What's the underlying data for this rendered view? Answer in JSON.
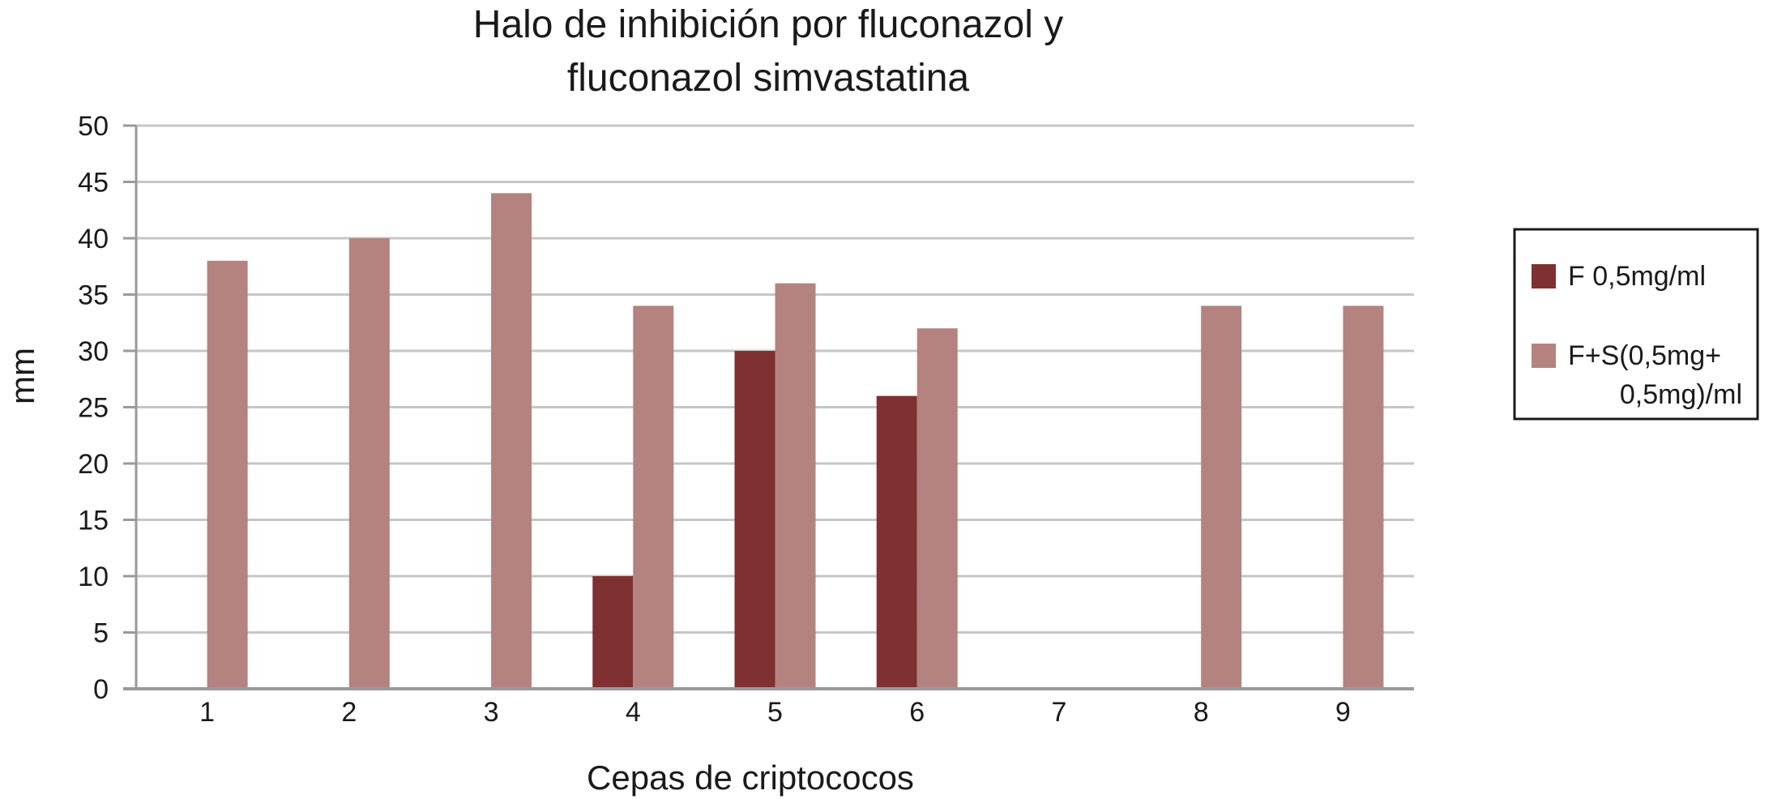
{
  "chart_data": {
    "type": "bar",
    "title_lines": [
      "Halo de inhibición por fluconazol y",
      "fluconazol simvastatina"
    ],
    "xlabel": "Cepas de criptococos",
    "ylabel": "mm",
    "categories": [
      "1",
      "2",
      "3",
      "4",
      "5",
      "6",
      "7",
      "8",
      "9"
    ],
    "ylim": [
      0,
      50
    ],
    "yticks": [
      0,
      5,
      10,
      15,
      20,
      25,
      30,
      35,
      40,
      45,
      50
    ],
    "grid": true,
    "legend_position": "right",
    "series": [
      {
        "name": "F 0,5mg/ml",
        "legend_lines": [
          "F 0,5mg/ml"
        ],
        "color": "#7e3130",
        "values": [
          0,
          0,
          0,
          10,
          30,
          26,
          0,
          0,
          0
        ]
      },
      {
        "name": "F+S(0,5mg+ 0,5mg)/ml",
        "legend_lines": [
          "F+S(0,5mg+",
          "0,5mg)/ml"
        ],
        "color": "#b4837f",
        "values": [
          38,
          40,
          44,
          34,
          36,
          32,
          0,
          34,
          34
        ]
      }
    ]
  }
}
